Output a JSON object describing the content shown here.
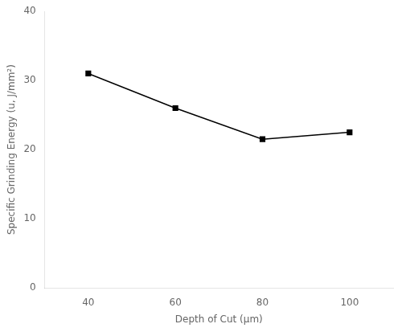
{
  "chart_data": {
    "type": "line",
    "x": [
      40,
      60,
      80,
      100
    ],
    "values": [
      31.0,
      26.0,
      21.5,
      22.5
    ],
    "xlabel": "Depth of Cut (μm)",
    "ylabel": "Specific Grinding Energy (u, J/mm²)",
    "xlim": [
      30,
      110
    ],
    "ylim": [
      0,
      40
    ],
    "xticks": [
      40,
      60,
      80,
      100
    ],
    "yticks": [
      0,
      10,
      20,
      30,
      40
    ],
    "color": "#000000",
    "marker": "square",
    "grid": false
  }
}
